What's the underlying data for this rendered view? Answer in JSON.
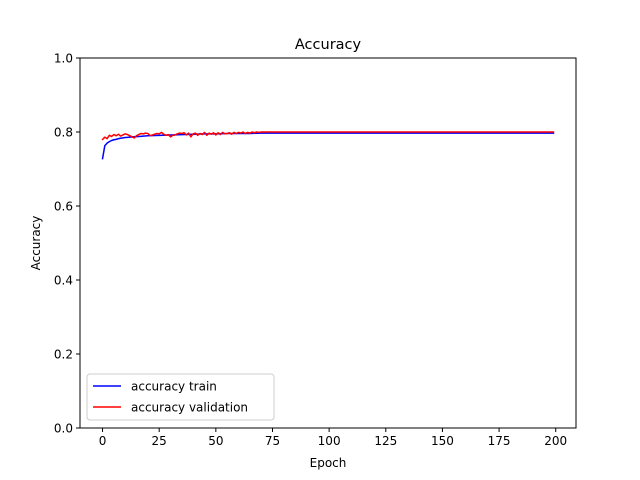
{
  "chart_data": {
    "type": "line",
    "title": "Accuracy",
    "xlabel": "Epoch",
    "ylabel": "Accuracy",
    "xlim": [
      -9.95,
      208.95
    ],
    "ylim": [
      0.0,
      1.0
    ],
    "xticks": [
      0,
      25,
      50,
      75,
      100,
      125,
      150,
      175,
      200
    ],
    "yticks": [
      0.0,
      0.2,
      0.4,
      0.6,
      0.8,
      1.0
    ],
    "xtick_labels": [
      "0",
      "25",
      "50",
      "75",
      "100",
      "125",
      "150",
      "175",
      "200"
    ],
    "ytick_labels": [
      "0.0",
      "0.2",
      "0.4",
      "0.6",
      "0.8",
      "1.0"
    ],
    "grid": false,
    "legend_location": "lower-left",
    "series": [
      {
        "name": "accuracy train",
        "color": "#0000ff",
        "x": [
          0,
          1,
          2,
          3,
          4,
          5,
          6,
          7,
          8,
          9,
          10,
          12,
          14,
          16,
          18,
          20,
          25,
          30,
          35,
          40,
          45,
          50,
          55,
          60,
          65,
          70,
          80,
          90,
          100,
          110,
          120,
          130,
          140,
          150,
          160,
          170,
          180,
          190,
          199
        ],
        "y": [
          0.728,
          0.763,
          0.77,
          0.774,
          0.777,
          0.779,
          0.78,
          0.782,
          0.783,
          0.784,
          0.785,
          0.786,
          0.787,
          0.788,
          0.789,
          0.79,
          0.791,
          0.792,
          0.793,
          0.794,
          0.795,
          0.795,
          0.796,
          0.796,
          0.796,
          0.797,
          0.797,
          0.797,
          0.797,
          0.797,
          0.797,
          0.797,
          0.797,
          0.797,
          0.797,
          0.797,
          0.797,
          0.797,
          0.797
        ]
      },
      {
        "name": "accuracy validation",
        "color": "#ff0000",
        "x": [
          0,
          1,
          2,
          3,
          4,
          5,
          6,
          7,
          8,
          9,
          10,
          11,
          12,
          13,
          14,
          15,
          16,
          17,
          18,
          19,
          20,
          21,
          22,
          23,
          24,
          25,
          26,
          27,
          28,
          29,
          30,
          31,
          32,
          33,
          34,
          35,
          36,
          37,
          38,
          39,
          40,
          41,
          42,
          43,
          44,
          45,
          46,
          47,
          48,
          49,
          50,
          51,
          52,
          53,
          54,
          55,
          56,
          57,
          58,
          59,
          60,
          61,
          62,
          63,
          64,
          65,
          66,
          67,
          68,
          69,
          70,
          75,
          80,
          90,
          100,
          110,
          120,
          130,
          140,
          150,
          160,
          170,
          180,
          190,
          199
        ],
        "y": [
          0.78,
          0.786,
          0.782,
          0.791,
          0.788,
          0.793,
          0.79,
          0.794,
          0.789,
          0.792,
          0.795,
          0.793,
          0.79,
          0.787,
          0.784,
          0.79,
          0.793,
          0.796,
          0.795,
          0.797,
          0.796,
          0.79,
          0.792,
          0.794,
          0.796,
          0.795,
          0.799,
          0.794,
          0.791,
          0.793,
          0.787,
          0.791,
          0.792,
          0.795,
          0.797,
          0.796,
          0.798,
          0.792,
          0.797,
          0.787,
          0.795,
          0.797,
          0.791,
          0.796,
          0.793,
          0.799,
          0.791,
          0.797,
          0.794,
          0.798,
          0.792,
          0.798,
          0.793,
          0.799,
          0.795,
          0.796,
          0.798,
          0.794,
          0.799,
          0.796,
          0.799,
          0.797,
          0.8,
          0.796,
          0.799,
          0.797,
          0.8,
          0.798,
          0.8,
          0.799,
          0.8,
          0.8,
          0.8,
          0.8,
          0.8,
          0.8,
          0.8,
          0.8,
          0.8,
          0.8,
          0.8,
          0.8,
          0.8,
          0.8,
          0.8
        ]
      }
    ]
  }
}
